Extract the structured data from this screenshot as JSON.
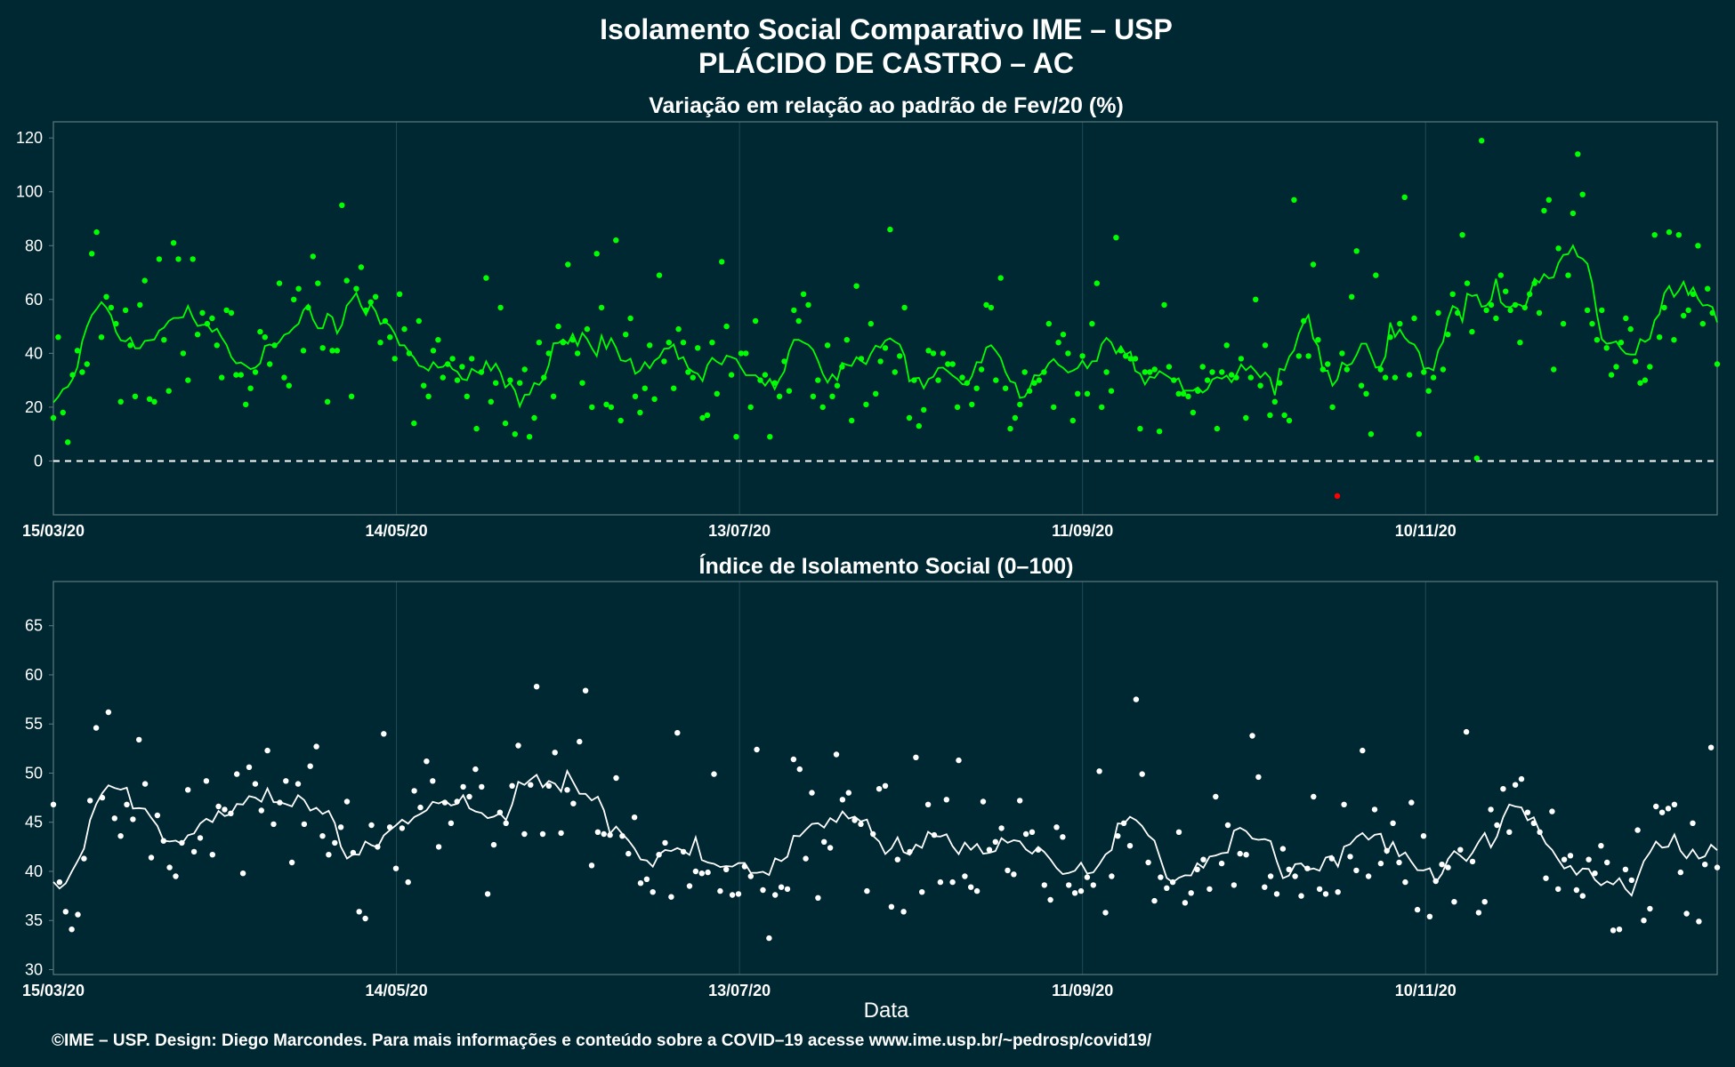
{
  "title_line1": "Isolamento Social Comparativo IME – USP",
  "title_line2": "PLÁCIDO DE CASTRO – AC",
  "xlabel": "Data",
  "footer": "©IME – USP. Design: Diego Marcondes. Para mais informações e conteúdo sobre a COVID–19 acesse www.ime.usp.br/~pedrosp/covid19/",
  "colors": {
    "background": "#002833",
    "panel_border": "#5f7a80",
    "grid": "#1f4a55",
    "top_points": "#00ff00",
    "top_line": "#00ff00",
    "negative_points": "#ff0000",
    "bottom_points": "#ffffff",
    "bottom_line": "#ffffff",
    "zero_line": "#ffffff"
  },
  "chart_data": [
    {
      "type": "scatter",
      "title": "Variação em relação ao padrão de Fev/20 (%)",
      "x_start": "2020-03-15",
      "x_end": "2020-12-31",
      "x_ticks": [
        "15/03/20",
        "14/05/20",
        "13/07/20",
        "11/09/20",
        "10/11/20"
      ],
      "y_ticks": [
        0,
        20,
        40,
        60,
        80,
        100,
        120
      ],
      "ylim": [
        -20,
        126
      ],
      "reference_line": 0,
      "grid": true,
      "series": [
        {
          "values": [
            16,
            46,
            18,
            7,
            32,
            41,
            33,
            36,
            77,
            85,
            46,
            61,
            57,
            51,
            22,
            56,
            43,
            24,
            58,
            67,
            23,
            22,
            75,
            45,
            26,
            81,
            75,
            40,
            30,
            75,
            47,
            55,
            51,
            53,
            43,
            31,
            56,
            55,
            32,
            32,
            21,
            27,
            33,
            48,
            46,
            36,
            43,
            66,
            31,
            28,
            60,
            64,
            41,
            57,
            76,
            66,
            42,
            22,
            41,
            41,
            95,
            67,
            24,
            64,
            72,
            56,
            59,
            61,
            44,
            52,
            46,
            38,
            62,
            49,
            40,
            14,
            52,
            28,
            24,
            41,
            45,
            31,
            36,
            38,
            30,
            35,
            24,
            38,
            12,
            33,
            68,
            22,
            29,
            57,
            14,
            30,
            10,
            29,
            34,
            9,
            16,
            44,
            31,
            40,
            24,
            50,
            44,
            73,
            45,
            40,
            29,
            49,
            20,
            77,
            57,
            21,
            20,
            82,
            15,
            47,
            53,
            24,
            18,
            27,
            43,
            23,
            69,
            37,
            44,
            27,
            49,
            44,
            33,
            31,
            42,
            16,
            17,
            44,
            25,
            74,
            50,
            32,
            9,
            40,
            40,
            20,
            52,
            30,
            32,
            9,
            29,
            24,
            37,
            26,
            56,
            52,
            62,
            58,
            24,
            30,
            20,
            43,
            24,
            28,
            35,
            45,
            15,
            65,
            38,
            21,
            51,
            25,
            37,
            42,
            86,
            33,
            39,
            57,
            16,
            30,
            13,
            19,
            41,
            40,
            30,
            40,
            36,
            36,
            20,
            31,
            29,
            21,
            27,
            34,
            58,
            57,
            30,
            68,
            27,
            12,
            16,
            21,
            33,
            26,
            29,
            30,
            33,
            51,
            20,
            44,
            47,
            40,
            15,
            25,
            39,
            25,
            51,
            66,
            20,
            33,
            26,
            83,
            41,
            39,
            38,
            38,
            12,
            33,
            33,
            34,
            11,
            58,
            35,
            30,
            25,
            25,
            24,
            18,
            26,
            35,
            30,
            33,
            12,
            33,
            43,
            32,
            31,
            38,
            16,
            31,
            60,
            28,
            43,
            17,
            22,
            29,
            17,
            15,
            97,
            39,
            52,
            39,
            73,
            45,
            34,
            36,
            20
          ],
          "group": "phase1"
        },
        {
          "values": [
            -13,
            40,
            34,
            61,
            78,
            28,
            25,
            10,
            69,
            34,
            31,
            46,
            31,
            51,
            98,
            32,
            53,
            10,
            33,
            26,
            31,
            55,
            34,
            47,
            62,
            55,
            84,
            66,
            48,
            1,
            119,
            56,
            58,
            53,
            69,
            63,
            56,
            58,
            44,
            57,
            62,
            66,
            55,
            93,
            97,
            34,
            79,
            51,
            69,
            92,
            114,
            99,
            56,
            51,
            45,
            56,
            42,
            32,
            35,
            44,
            53,
            49,
            37,
            29,
            30,
            35,
            84,
            46,
            57,
            85,
            45,
            84,
            54,
            56,
            62,
            80,
            51,
            64,
            55,
            36
          ],
          "group": "phase2"
        }
      ]
    },
    {
      "type": "scatter",
      "title": "Índice de Isolamento Social (0–100)",
      "x_start": "2020-03-15",
      "x_end": "2020-12-31",
      "x_ticks": [
        "15/03/20",
        "14/05/20",
        "13/07/20",
        "11/09/20",
        "10/11/20"
      ],
      "y_ticks": [
        30,
        35,
        40,
        45,
        50,
        55,
        60,
        65
      ],
      "ylim": [
        29.5,
        69.5
      ],
      "grid": true,
      "series": [
        {
          "values": [
            46.8,
            38.9,
            35.9,
            34.1,
            35.6,
            41.3,
            47.2,
            54.6,
            47.5,
            56.2,
            45.4,
            43.6,
            46.8,
            45.3,
            53.4,
            48.9,
            41.4,
            45.7,
            43.1,
            40.4,
            39.5,
            42.9,
            48.3,
            42.0,
            43.4,
            49.2,
            41.7,
            46.6,
            46.3,
            45.9,
            49.9,
            39.8,
            50.6,
            48.9,
            46.2,
            52.3,
            44.8,
            47.0,
            49.2,
            40.9,
            48.9,
            44.8,
            50.7,
            52.7,
            43.6,
            41.7,
            42.9,
            44.5,
            47.1,
            41.9,
            35.9,
            35.2,
            44.7,
            42.5,
            54.0,
            44.5,
            40.3,
            44.4,
            38.9,
            48.2,
            46.5,
            51.2,
            49.2,
            42.5,
            47.0,
            44.9,
            47.1,
            48.6,
            47.6,
            50.4,
            48.6,
            37.7,
            42.7,
            46.0,
            44.9,
            48.7,
            52.8,
            43.8,
            48.8,
            58.8,
            43.8,
            48.7,
            52.1,
            43.9,
            48.3,
            46.9,
            53.2,
            58.4,
            40.6,
            44.0,
            43.8,
            43.7,
            49.5,
            43.6,
            41.8,
            45.5,
            38.8,
            39.2,
            37.9,
            41.7,
            42.9,
            37.4,
            54.1,
            42.0,
            38.5,
            40.0,
            39.8,
            39.9,
            49.9,
            38.0,
            40.2,
            37.6,
            37.7,
            40.5,
            39.5,
            52.4,
            38.1,
            33.2,
            37.6,
            38.4,
            38.2,
            51.4,
            50.4,
            41.3,
            48.0,
            37.3,
            43.0,
            42.4,
            51.9,
            47.3,
            48.0,
            45.2,
            44.8,
            38.0,
            43.8,
            48.4,
            48.7,
            36.4,
            41.2,
            35.9,
            42.0,
            51.6,
            37.9,
            46.8,
            43.7,
            38.9,
            47.3,
            38.9,
            51.3,
            39.5,
            38.4,
            38.0,
            47.1,
            42.2,
            43.0,
            44.4,
            40.1,
            39.7,
            47.2,
            43.8,
            44.0,
            42.2,
            38.6,
            37.1,
            44.5,
            43.5,
            38.6,
            37.8,
            38.0,
            39.4,
            38.6,
            50.2,
            35.8,
            39.5,
            43.6,
            44.9,
            42.6,
            57.5,
            49.9,
            40.9,
            37.0,
            39.4,
            38.3,
            38.9,
            44.0,
            36.8,
            37.8,
            40.2,
            41.2,
            38.2,
            47.6,
            40.8,
            44.7,
            38.6,
            41.8,
            41.7,
            53.8,
            49.6,
            38.4,
            39.5,
            37.7,
            42.3,
            40.2,
            39.5,
            37.5,
            40.3,
            47.6,
            38.2,
            37.7,
            41.3,
            37.9,
            46.8,
            41.5,
            40.1,
            52.3,
            39.5,
            46.3,
            40.8,
            42.1,
            44.9,
            40.9,
            38.9,
            47.0,
            36.1,
            43.6,
            35.4,
            39.0,
            40.7,
            40.4,
            36.9,
            42.2,
            54.2,
            41.0,
            35.8,
            36.9,
            46.3,
            44.7,
            48.4,
            44.0,
            48.8,
            49.4,
            46.0,
            44.9,
            44.0,
            39.3,
            46.1,
            38.2,
            41.2,
            41.6,
            38.1,
            37.5,
            41.2,
            39.8,
            42.6,
            40.9,
            34.0,
            34.1,
            40.2,
            39.1,
            44.2,
            35.0,
            36.2,
            46.6,
            46.0,
            46.4,
            46.8,
            39.9,
            35.7,
            44.9,
            34.9,
            40.7,
            52.6,
            40.4
          ],
          "group": "all"
        }
      ]
    }
  ]
}
